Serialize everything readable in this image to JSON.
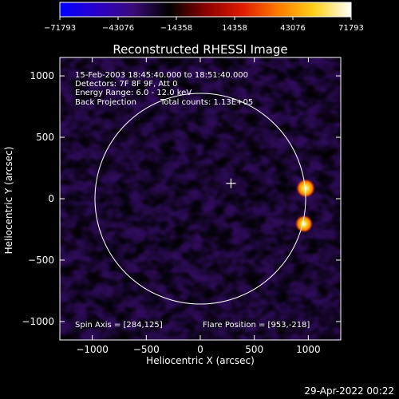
{
  "chart_data": {
    "type": "heatmap",
    "title": "Reconstructed RHESSI Image",
    "xlabel": "Heliocentric X (arcsec)",
    "ylabel": "Heliocentric Y (arcsec)",
    "xlim": [
      -1300,
      1300
    ],
    "ylim": [
      -1150,
      1150
    ],
    "xticks": [
      -1000,
      -500,
      0,
      500,
      1000
    ],
    "xtick_labels": [
      "−1000",
      "−500",
      "0",
      "500",
      "1000"
    ],
    "yticks": [
      -1000,
      -500,
      0,
      500,
      1000
    ],
    "ytick_labels": [
      "−1000",
      "−500",
      "0",
      "500",
      "1000"
    ],
    "colorbar": {
      "min": -71793,
      "max": 71793,
      "tick_values": [
        -71793,
        -43076,
        -14358,
        14358,
        43076,
        71793
      ],
      "tick_labels": [
        "−71793",
        "−43076",
        "−14358",
        "14358",
        "43076",
        "71793"
      ],
      "colors": [
        "#0000ff",
        "#2a00cc",
        "#3a0b78",
        "#000000",
        "#8a0000",
        "#dd1a00",
        "#ff7a00",
        "#ffd21a",
        "#ffffff"
      ]
    },
    "annotations": {
      "time_range": "15-Feb-2003 18:45:40.000 to 18:51:40.000",
      "detectors": "Detectors: 7F 8F 9F, Att 0",
      "energy_range": "Energy Range: 6.0 - 12.0 keV",
      "method": "Back Projection",
      "total_counts": "Total counts: 1.13E+05",
      "spin_axis": "Spin Axis = [284,125]",
      "flare_position": "Flare Position = [953,-218]"
    },
    "solar_limb": {
      "center": [
        0,
        0
      ],
      "radius": 975
    },
    "spin_axis_marker": [
      284,
      125
    ],
    "bright_sources": [
      {
        "x": 975,
        "y": 85,
        "value": 71793
      },
      {
        "x": 960,
        "y": -205,
        "value": 60000
      }
    ]
  },
  "footer": {
    "timestamp": "29-Apr-2022 00:22"
  }
}
